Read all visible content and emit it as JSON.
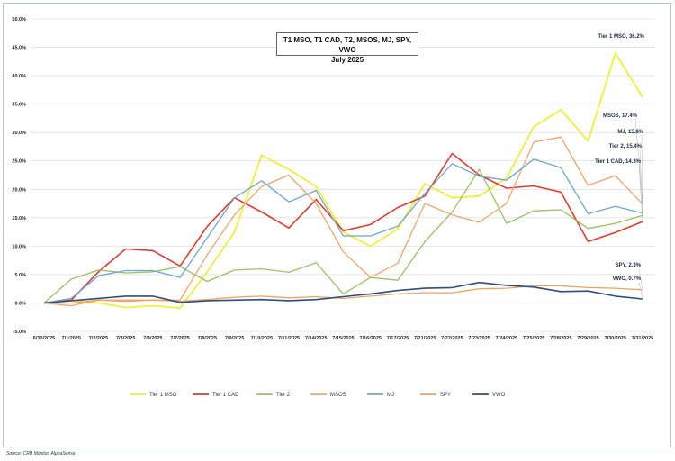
{
  "chart_data": {
    "type": "line",
    "title": "T1 MSO, T1 CAD, T2, MSOS, MJ, SPY, VWO",
    "subtitle": "July  2025",
    "source": "Source: CRB Monitor, AlphaSense",
    "y_ticks": [
      "50.0%",
      "45.0%",
      "40.0%",
      "35.0%",
      "30.0%",
      "25.0%",
      "20.0%",
      "15.0%",
      "10.0%",
      "5.0%",
      "0.0%",
      "-5.0%"
    ],
    "ylim": [
      -5,
      50
    ],
    "grid": true,
    "legend_position": "bottom",
    "categories": [
      "6/30/2025",
      "7/1/2025",
      "7/2/2025",
      "7/3/2025",
      "7/4/2025",
      "7/7/2025",
      "7/8/2025",
      "7/9/2025",
      "7/10/2025",
      "7/11/2025",
      "7/14/2025",
      "7/15/2025",
      "7/16/2025",
      "7/17/2025",
      "7/21/2025",
      "7/22/2025",
      "7/23/2025",
      "7/24/2025",
      "7/25/2025",
      "7/28/2025",
      "7/29/2025",
      "7/30/2025",
      "7/31/2025"
    ],
    "series": [
      {
        "name": "Tier 1 MSO",
        "color": "#f2ee3c",
        "width": 1.8,
        "values": [
          0,
          0.5,
          0,
          -0.8,
          -0.5,
          -0.9,
          5.5,
          12.5,
          26,
          23.5,
          20.5,
          12.5,
          10,
          13,
          21,
          18.5,
          18.8,
          22,
          31,
          34,
          28.5,
          44,
          36.2
        ]
      },
      {
        "name": "Tier 1 CAD",
        "color": "#e23a2e",
        "width": 1.6,
        "values": [
          0,
          0.5,
          5.5,
          9.5,
          9.2,
          6.5,
          13.5,
          18.5,
          16,
          13.2,
          18.2,
          12.7,
          13.8,
          16.8,
          18.8,
          26.3,
          22.5,
          20.2,
          20.6,
          19.5,
          10.8,
          12.4,
          14.3
        ]
      },
      {
        "name": "Tier 2",
        "color": "#9bc165",
        "width": 1.3,
        "values": [
          0,
          4.2,
          5.8,
          5.3,
          5.5,
          6.4,
          3.8,
          5.8,
          6.0,
          5.4,
          7.1,
          1.6,
          4.5,
          4.0,
          10.8,
          16.0,
          23.5,
          14.0,
          16.2,
          16.4,
          13.1,
          14.0,
          15.4
        ]
      },
      {
        "name": "MSOS",
        "color": "#f2a46a",
        "width": 1.3,
        "values": [
          0,
          -0.5,
          0.5,
          0.5,
          0.5,
          0.5,
          8.5,
          15.5,
          20.5,
          22.5,
          17.5,
          9.0,
          4.5,
          7.0,
          17.5,
          15.5,
          14.2,
          17.5,
          28.3,
          29.2,
          20.7,
          22.4,
          17.4
        ]
      },
      {
        "name": "MJ",
        "color": "#6fa8c8",
        "width": 1.3,
        "values": [
          0,
          0.8,
          4.8,
          5.7,
          5.7,
          4.5,
          11.5,
          18.5,
          21.5,
          17.8,
          19.8,
          11.8,
          11.8,
          13.5,
          19.3,
          24.5,
          22.3,
          21.6,
          25.3,
          23.8,
          15.7,
          17.0,
          15.8
        ]
      },
      {
        "name": "SPY",
        "color": "#f0a25e",
        "width": 1.3,
        "values": [
          0,
          0,
          0.5,
          0.3,
          0.5,
          0.3,
          0.6,
          1.0,
          1.2,
          0.9,
          1.1,
          0.8,
          1.2,
          1.6,
          1.8,
          1.8,
          2.5,
          2.6,
          3.0,
          3.0,
          2.7,
          2.6,
          2.3
        ]
      },
      {
        "name": "VWO",
        "color": "#2f4f7f",
        "width": 1.6,
        "values": [
          0,
          0.4,
          0.8,
          1.2,
          1.2,
          0.1,
          0.4,
          0.5,
          0.6,
          0.4,
          0.6,
          1.1,
          1.6,
          2.2,
          2.6,
          2.7,
          3.6,
          3.1,
          2.8,
          2.0,
          2.1,
          1.2,
          0.7
        ]
      }
    ],
    "end_labels": [
      "Tier 1 MSO, 36.2%",
      "MSOS, 17.4%",
      "MJ, 15.8%",
      "Tier 2, 15.4%",
      "Tier 1 CAD, 14.3%",
      "SPY, 2.3%",
      "VWO, 0.7%"
    ]
  }
}
